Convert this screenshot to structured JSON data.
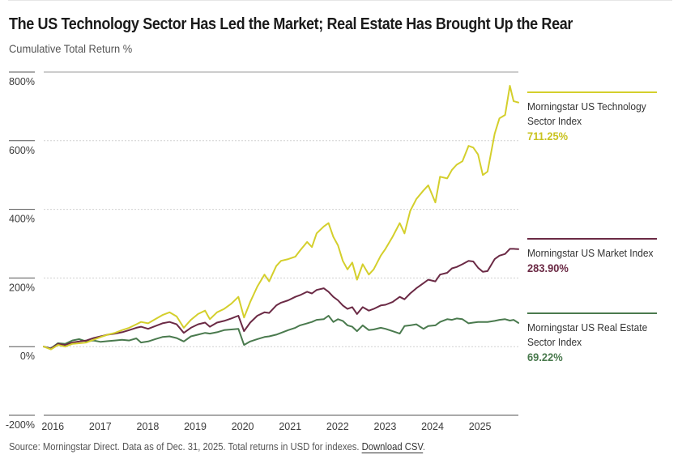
{
  "header": {
    "title": "The US Technology Sector Has Led the Market; Real Estate Has Brought Up the Rear",
    "subtitle": "Cumulative Total Return %"
  },
  "footer": {
    "source_text": "Source: Morningstar Direct. Data as of Dec. 31, 2025. Total returns in USD for indexes.",
    "download_link": "Download CSV",
    "trailing": "."
  },
  "legend": [
    {
      "name_line1": "Morningstar US Technology",
      "name_line2": "Sector Index",
      "value": "711.25%",
      "color": "#d4cf2c"
    },
    {
      "name_line1": "Morningstar US Market Index",
      "name_line2": "",
      "value": "283.90%",
      "color": "#6b2a45"
    },
    {
      "name_line1": "Morningstar US Real Estate",
      "name_line2": "Sector Index",
      "value": "69.22%",
      "color": "#4a7a4e"
    }
  ],
  "chart_data": {
    "type": "line",
    "title": "The US Technology Sector Has Led the Market; Real Estate Has Brought Up the Rear",
    "subtitle": "Cumulative Total Return %",
    "xlabel": "",
    "ylabel": "Cumulative Total Return %",
    "xlim": [
      2016.0,
      2026.0
    ],
    "ylim": [
      -200,
      800
    ],
    "y_ticks": [
      800,
      600,
      400,
      200,
      0,
      -200
    ],
    "y_tick_labels": [
      "800%",
      "600%",
      "400%",
      "200%",
      "0%",
      "-200%"
    ],
    "x_ticks": [
      2016,
      2017,
      2018,
      2019,
      2020,
      2021,
      2022,
      2023,
      2024,
      2025
    ],
    "x_tick_labels": [
      "2016",
      "2017",
      "2018",
      "2019",
      "2020",
      "2021",
      "2022",
      "2023",
      "2024",
      "2025"
    ],
    "grid": "horizontal-dotted",
    "legend_placement": "right",
    "series": [
      {
        "name": "Morningstar US Technology Sector Index",
        "color": "#d4cf2c",
        "final_value": 711.25,
        "x": [
          2016.0,
          2016.15,
          2016.3,
          2016.45,
          2016.6,
          2016.75,
          2016.9,
          2017.05,
          2017.2,
          2017.35,
          2017.5,
          2017.65,
          2017.8,
          2017.95,
          2018.05,
          2018.2,
          2018.35,
          2018.5,
          2018.65,
          2018.8,
          2018.95,
          2019.1,
          2019.25,
          2019.4,
          2019.5,
          2019.65,
          2019.8,
          2019.95,
          2020.1,
          2020.22,
          2020.35,
          2020.5,
          2020.65,
          2020.75,
          2020.9,
          2021.0,
          2021.15,
          2021.3,
          2021.4,
          2021.55,
          2021.65,
          2021.75,
          2021.9,
          2022.0,
          2022.1,
          2022.2,
          2022.3,
          2022.4,
          2022.5,
          2022.6,
          2022.72,
          2022.85,
          2022.95,
          2023.1,
          2023.2,
          2023.35,
          2023.5,
          2023.6,
          2023.72,
          2023.85,
          2024.0,
          2024.1,
          2024.25,
          2024.35,
          2024.5,
          2024.6,
          2024.7,
          2024.82,
          2024.95,
          2025.05,
          2025.15,
          2025.25,
          2025.35,
          2025.5,
          2025.6,
          2025.72,
          2025.82,
          2025.9,
          2026.0
        ],
        "values": [
          0,
          -8,
          5,
          0,
          8,
          10,
          12,
          20,
          28,
          35,
          40,
          48,
          55,
          65,
          72,
          68,
          80,
          92,
          100,
          88,
          55,
          78,
          95,
          105,
          80,
          100,
          110,
          125,
          145,
          85,
          130,
          175,
          210,
          190,
          235,
          250,
          255,
          262,
          280,
          305,
          290,
          330,
          350,
          360,
          320,
          295,
          250,
          225,
          245,
          195,
          240,
          210,
          225,
          265,
          285,
          320,
          360,
          330,
          395,
          430,
          455,
          470,
          420,
          495,
          490,
          515,
          530,
          540,
          585,
          580,
          560,
          500,
          510,
          620,
          665,
          675,
          760,
          715,
          711.25
        ]
      },
      {
        "name": "Morningstar US Market Index",
        "color": "#6b2a45",
        "final_value": 283.9,
        "x": [
          2016.0,
          2016.15,
          2016.3,
          2016.45,
          2016.6,
          2016.75,
          2016.9,
          2017.05,
          2017.2,
          2017.35,
          2017.5,
          2017.65,
          2017.8,
          2017.95,
          2018.05,
          2018.2,
          2018.35,
          2018.5,
          2018.65,
          2018.8,
          2018.95,
          2019.1,
          2019.25,
          2019.4,
          2019.5,
          2019.65,
          2019.8,
          2019.95,
          2020.1,
          2020.22,
          2020.35,
          2020.5,
          2020.65,
          2020.75,
          2020.9,
          2021.0,
          2021.15,
          2021.3,
          2021.4,
          2021.55,
          2021.65,
          2021.75,
          2021.9,
          2022.0,
          2022.1,
          2022.2,
          2022.3,
          2022.4,
          2022.5,
          2022.6,
          2022.72,
          2022.85,
          2022.95,
          2023.1,
          2023.2,
          2023.35,
          2023.5,
          2023.6,
          2023.72,
          2023.85,
          2024.0,
          2024.1,
          2024.25,
          2024.35,
          2024.5,
          2024.6,
          2024.7,
          2024.82,
          2024.95,
          2025.05,
          2025.15,
          2025.25,
          2025.35,
          2025.5,
          2025.6,
          2025.72,
          2025.82,
          2025.9,
          2026.0
        ],
        "values": [
          0,
          -6,
          8,
          5,
          12,
          15,
          18,
          25,
          30,
          35,
          38,
          42,
          48,
          55,
          58,
          52,
          60,
          68,
          72,
          65,
          40,
          55,
          65,
          70,
          58,
          70,
          75,
          82,
          90,
          45,
          70,
          90,
          100,
          98,
          120,
          128,
          135,
          145,
          150,
          160,
          155,
          165,
          170,
          160,
          145,
          135,
          120,
          110,
          115,
          95,
          115,
          105,
          110,
          120,
          122,
          130,
          145,
          138,
          155,
          170,
          185,
          195,
          190,
          210,
          215,
          228,
          232,
          240,
          250,
          248,
          230,
          218,
          220,
          255,
          265,
          270,
          285,
          285,
          283.9
        ]
      },
      {
        "name": "Morningstar US Real Estate Sector Index",
        "color": "#4a7a4e",
        "final_value": 69.22,
        "x": [
          2016.0,
          2016.15,
          2016.3,
          2016.45,
          2016.6,
          2016.75,
          2016.9,
          2017.05,
          2017.2,
          2017.35,
          2017.5,
          2017.65,
          2017.8,
          2017.95,
          2018.05,
          2018.2,
          2018.35,
          2018.5,
          2018.65,
          2018.8,
          2018.95,
          2019.1,
          2019.25,
          2019.4,
          2019.5,
          2019.65,
          2019.8,
          2019.95,
          2020.1,
          2020.22,
          2020.35,
          2020.5,
          2020.65,
          2020.75,
          2020.9,
          2021.0,
          2021.15,
          2021.3,
          2021.4,
          2021.55,
          2021.65,
          2021.75,
          2021.9,
          2022.0,
          2022.1,
          2022.2,
          2022.3,
          2022.4,
          2022.5,
          2022.6,
          2022.72,
          2022.85,
          2022.95,
          2023.1,
          2023.2,
          2023.35,
          2023.5,
          2023.6,
          2023.72,
          2023.85,
          2024.0,
          2024.1,
          2024.25,
          2024.35,
          2024.5,
          2024.6,
          2024.7,
          2024.82,
          2024.95,
          2025.05,
          2025.15,
          2025.25,
          2025.35,
          2025.5,
          2025.6,
          2025.72,
          2025.82,
          2025.9,
          2026.0
        ],
        "values": [
          0,
          -5,
          10,
          8,
          18,
          22,
          15,
          18,
          14,
          16,
          18,
          20,
          18,
          24,
          12,
          15,
          22,
          28,
          30,
          25,
          15,
          30,
          35,
          40,
          38,
          42,
          48,
          50,
          52,
          5,
          15,
          22,
          28,
          30,
          35,
          40,
          48,
          55,
          62,
          68,
          72,
          78,
          80,
          90,
          72,
          80,
          75,
          62,
          58,
          45,
          62,
          48,
          50,
          55,
          52,
          45,
          38,
          60,
          62,
          65,
          52,
          60,
          62,
          72,
          80,
          78,
          82,
          80,
          68,
          70,
          72,
          72,
          72,
          75,
          78,
          80,
          76,
          78,
          69.22
        ]
      }
    ]
  }
}
